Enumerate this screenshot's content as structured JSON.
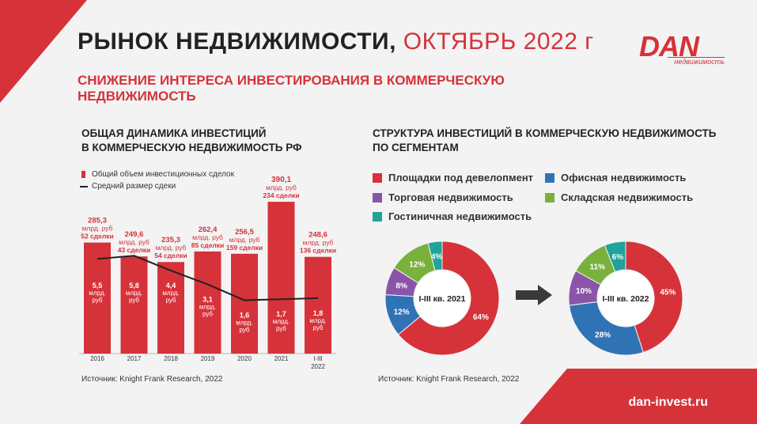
{
  "title": {
    "main": "РЫНОК НЕДВИЖИМОСТИ,",
    "accent": "ОКТЯБРЬ 2022 г"
  },
  "logo": {
    "brand": "DAN",
    "sub": "недвижимость"
  },
  "subtitle": "СНИЖЕНИЕ ИНТЕРЕСА ИНВЕСТИРОВАНИЯ  В КОММЕРЧЕСКУЮ НЕДВИЖИМОСТЬ",
  "left_section": {
    "title_line1": "ОБЩАЯ ДИНАМИКА ИНВЕСТИЦИЙ",
    "title_line2": "В КОММЕРЧЕСКУЮ НЕДВИЖИМОСТЬ РФ",
    "legend_bar": "Общий объем инвестиционных сделок",
    "legend_line": "Средний размер сдеки",
    "source": "Источник: Knight Frank Research, 2022"
  },
  "right_section": {
    "title_line1": "СТРУКТУРА ИНВЕСТИЦИЙ В КОММЕРЧЕСКУЮ НЕДВИЖИМОСТЬ",
    "title_line2": "ПО СЕГМЕНТАМ",
    "legend": [
      {
        "label": "Площадки под девелопмент",
        "color": "#d6323a"
      },
      {
        "label": "Офисная недвижимость",
        "color": "#2f73b5"
      },
      {
        "label": "Торговая недвижимость",
        "color": "#8a55a8"
      },
      {
        "label": "Складская недвижимость",
        "color": "#79b13c"
      },
      {
        "label": "Гостиничная недвижимость",
        "color": "#1fa39a"
      }
    ],
    "source": "Источник: Knight Frank Research, 2022"
  },
  "site": "dan-invest.ru",
  "chart_data": [
    {
      "type": "bar",
      "categories": [
        "2016",
        "2017",
        "2018",
        "2019",
        "2020",
        "2021",
        "I-III 2022"
      ],
      "series": [
        {
          "name": "Общий объем инвестиционных сделок",
          "values": [
            285.3,
            249.6,
            235.3,
            262.4,
            256.5,
            390.1,
            248.6
          ],
          "color": "#d6323a"
        },
        {
          "name": "Средний размер сдеки",
          "values": [
            5.5,
            5.8,
            4.4,
            3.1,
            1.6,
            1.7,
            1.8
          ],
          "color": "#222222"
        }
      ],
      "value_labels": [
        {
          "amount": "285,3",
          "unit": "млрд. руб",
          "deals": "52 сделки"
        },
        {
          "amount": "249,6",
          "unit": "млрд. руб",
          "deals": "43 сделки"
        },
        {
          "amount": "235,3",
          "unit": "млрд. руб",
          "deals": "54 сделки"
        },
        {
          "amount": "262,4",
          "unit": "млрд. руб",
          "deals": "85 сделки"
        },
        {
          "amount": "256,5",
          "unit": "млрд. руб",
          "deals": "159 сделки"
        },
        {
          "amount": "390,1",
          "unit": "млрд. руб",
          "deals": "234 сделки"
        },
        {
          "amount": "248,6",
          "unit": "млрд. руб",
          "deals": "136 сделки"
        }
      ],
      "avg_labels": [
        {
          "amount": "5,5",
          "unit1": "млрд.",
          "unit2": "руб"
        },
        {
          "amount": "5,8",
          "unit1": "млрд.",
          "unit2": "руб"
        },
        {
          "amount": "4,4",
          "unit1": "млрд.",
          "unit2": "руб"
        },
        {
          "amount": "3,1",
          "unit1": "млрд.",
          "unit2": "руб"
        },
        {
          "amount": "1,6",
          "unit1": "млрд.",
          "unit2": "руб"
        },
        {
          "amount": "1,7",
          "unit1": "млрд.",
          "unit2": "руб"
        },
        {
          "amount": "1,8",
          "unit1": "млрд.",
          "unit2": "руб"
        }
      ],
      "tick_labels": [
        [
          "2016"
        ],
        [
          "2017"
        ],
        [
          "2018"
        ],
        [
          "2019"
        ],
        [
          "2020"
        ],
        [
          "2021"
        ],
        [
          "I-III",
          "2022"
        ]
      ],
      "bar_ylim": [
        0,
        400
      ],
      "line_ylim": [
        0,
        12
      ]
    },
    {
      "type": "pie",
      "center_label": "I-III кв. 2021",
      "slices": [
        {
          "name": "Площадки под девелопмент",
          "value": 64,
          "label": "64%",
          "color": "#d6323a"
        },
        {
          "name": "Офисная недвижимость",
          "value": 12,
          "label": "12%",
          "color": "#2f73b5"
        },
        {
          "name": "Торговая недвижимость",
          "value": 8,
          "label": "8%",
          "color": "#8a55a8"
        },
        {
          "name": "Складская недвижимость",
          "value": 12,
          "label": "12%",
          "color": "#79b13c"
        },
        {
          "name": "Гостиничная недвижимость",
          "value": 4,
          "label": "4%",
          "color": "#1fa39a"
        }
      ]
    },
    {
      "type": "pie",
      "center_label": "I-III кв. 2022",
      "slices": [
        {
          "name": "Площадки под девелопмент",
          "value": 45,
          "label": "45%",
          "color": "#d6323a"
        },
        {
          "name": "Офисная недвижимость",
          "value": 28,
          "label": "28%",
          "color": "#2f73b5"
        },
        {
          "name": "Торговая недвижимость",
          "value": 10,
          "label": "10%",
          "color": "#8a55a8"
        },
        {
          "name": "Складская недвижимость",
          "value": 11,
          "label": "11%",
          "color": "#79b13c"
        },
        {
          "name": "Гостиничная недвижимость",
          "value": 6,
          "label": "6%",
          "color": "#1fa39a"
        }
      ]
    }
  ]
}
